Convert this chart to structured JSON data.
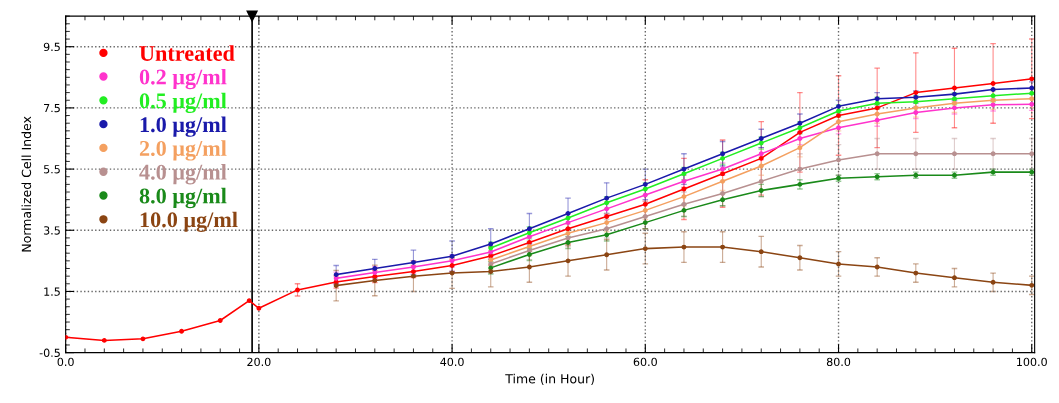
{
  "chart_data": {
    "type": "line",
    "xlabel": "Time (in Hour)",
    "ylabel": "Normalized Cell Index",
    "x": [
      0,
      4,
      8,
      12,
      16,
      19,
      20,
      24,
      28,
      32,
      36,
      40,
      44,
      48,
      52,
      56,
      60,
      64,
      68,
      72,
      76,
      80,
      84,
      88,
      92,
      96,
      100
    ],
    "xlim": [
      0,
      100.3
    ],
    "ylim": [
      -0.5,
      10.5
    ],
    "xticks": [
      {
        "value": 0,
        "label": "0.0"
      },
      {
        "value": 20,
        "label": "20.0"
      },
      {
        "value": 40,
        "label": "40.0"
      },
      {
        "value": 60,
        "label": "60.0"
      },
      {
        "value": 80,
        "label": "80.0"
      },
      {
        "value": 100,
        "label": "100.0"
      }
    ],
    "yticks": [
      -0.5,
      1.5,
      3.5,
      5.5,
      7.5,
      9.5
    ],
    "grid": true,
    "legend": "top left",
    "marker": "circle",
    "line_style": "solid",
    "ref_lines": [
      {
        "axis": "x",
        "value": 19.3,
        "color": "#000000",
        "line_style": "solid"
      }
    ],
    "series": [
      {
        "name": "Untreated",
        "color": "#ff0000",
        "values": [
          0.0,
          -0.1,
          -0.05,
          0.2,
          0.55,
          1.2,
          0.95,
          1.55,
          1.81,
          1.99,
          2.15,
          2.35,
          2.66,
          3.1,
          3.55,
          3.95,
          4.35,
          4.85,
          5.35,
          5.85,
          6.7,
          7.25,
          7.5,
          8.0,
          8.15,
          8.3,
          8.45
        ],
        "errors": [
          null,
          null,
          null,
          null,
          null,
          null,
          null,
          0.2,
          0.2,
          0.2,
          0.2,
          0.2,
          0.3,
          null,
          0.5,
          null,
          0.8,
          1.0,
          1.1,
          1.2,
          1.3,
          1.3,
          1.3,
          1.3,
          1.3,
          1.3,
          1.3
        ]
      },
      {
        "name": "0.2 μg/ml",
        "color": "#ff33cc",
        "values": [
          null,
          null,
          null,
          null,
          null,
          null,
          null,
          null,
          1.93,
          2.12,
          2.3,
          2.5,
          2.79,
          3.29,
          3.75,
          4.2,
          4.65,
          5.1,
          5.5,
          6.0,
          6.5,
          6.85,
          7.1,
          7.35,
          7.5,
          7.6,
          7.62
        ],
        "errors": [
          null,
          null,
          null,
          null,
          null,
          null,
          null,
          null,
          0.2,
          0.2,
          0.2,
          0.2,
          0.2,
          0.2,
          null,
          0.2,
          0.2,
          0.2,
          0.2,
          0.2,
          0.2,
          0.2,
          0.2,
          0.2,
          0.2,
          0.2,
          0.2
        ]
      },
      {
        "name": "0.5 μg/ml",
        "color": "#22ee22",
        "values": [
          null,
          null,
          null,
          null,
          null,
          null,
          null,
          null,
          null,
          null,
          null,
          null,
          2.92,
          3.42,
          3.9,
          4.4,
          4.85,
          5.35,
          5.85,
          6.35,
          6.85,
          7.4,
          7.65,
          7.7,
          7.8,
          7.9,
          7.98
        ],
        "errors": [
          null,
          null,
          null,
          null,
          null,
          null,
          null,
          null,
          null,
          null,
          null,
          null,
          0.2,
          0.2,
          null,
          0.2,
          0.2,
          0.2,
          0.2,
          0.2,
          0.2,
          0.2,
          0.2,
          0.2,
          0.2,
          0.2,
          null
        ]
      },
      {
        "name": "1.0 μg/ml",
        "color": "#1a1aaa",
        "values": [
          null,
          null,
          null,
          null,
          null,
          null,
          null,
          null,
          2.05,
          2.25,
          2.45,
          2.65,
          3.05,
          3.55,
          4.05,
          4.55,
          5.0,
          5.5,
          6.0,
          6.5,
          7.0,
          7.55,
          7.8,
          7.85,
          7.95,
          8.1,
          8.15
        ],
        "errors": [
          null,
          null,
          null,
          null,
          null,
          null,
          null,
          null,
          0.3,
          0.3,
          0.4,
          0.5,
          0.5,
          0.5,
          0.5,
          0.5,
          0.5,
          0.5,
          0.4,
          0.3,
          0.3,
          0.2,
          0.2,
          0.2,
          0.2,
          null,
          0.2
        ]
      },
      {
        "name": "2.0 μg/ml",
        "color": "#f4a060",
        "values": [
          null,
          null,
          null,
          null,
          null,
          null,
          null,
          null,
          null,
          null,
          null,
          null,
          2.53,
          2.97,
          3.4,
          3.75,
          4.15,
          4.6,
          5.1,
          5.6,
          6.2,
          7.05,
          7.3,
          7.5,
          7.65,
          7.75,
          7.8
        ],
        "errors": [
          null,
          null,
          null,
          null,
          null,
          null,
          null,
          null,
          null,
          null,
          null,
          null,
          0.3,
          0.3,
          0.3,
          0.3,
          0.3,
          0.3,
          0.3,
          0.3,
          0.3,
          0.3,
          0.3,
          0.3,
          0.3,
          0.3,
          0.3
        ]
      },
      {
        "name": "4.0 μg/ml",
        "color": "#b89090",
        "values": [
          null,
          null,
          null,
          null,
          null,
          null,
          null,
          null,
          null,
          null,
          null,
          null,
          2.4,
          2.84,
          3.25,
          3.55,
          3.95,
          4.35,
          4.7,
          5.1,
          5.5,
          5.8,
          6.0,
          6.0,
          6.0,
          6.0,
          6.0
        ],
        "errors": [
          null,
          null,
          null,
          null,
          null,
          null,
          null,
          null,
          null,
          null,
          null,
          null,
          0.3,
          0.3,
          0.3,
          0.3,
          0.4,
          0.4,
          0.4,
          0.5,
          0.5,
          0.5,
          0.5,
          0.5,
          0.5,
          0.5,
          0.5
        ]
      },
      {
        "name": "8.0 μg/ml",
        "color": "#1a8a1a",
        "values": [
          null,
          null,
          null,
          null,
          null,
          null,
          null,
          null,
          null,
          null,
          null,
          null,
          2.27,
          2.71,
          3.1,
          3.35,
          3.75,
          4.15,
          4.5,
          4.8,
          5.0,
          5.2,
          5.25,
          5.3,
          5.3,
          5.4,
          5.4
        ],
        "errors": [
          null,
          null,
          null,
          null,
          null,
          null,
          null,
          null,
          null,
          null,
          null,
          null,
          0.2,
          0.2,
          0.2,
          0.2,
          0.2,
          0.2,
          0.2,
          0.2,
          0.15,
          0.1,
          0.1,
          0.1,
          0.1,
          0.1,
          0.1
        ]
      },
      {
        "name": "10.0 μg/ml",
        "color": "#8b4513",
        "values": [
          null,
          null,
          null,
          null,
          null,
          null,
          null,
          null,
          1.69,
          1.86,
          2.0,
          2.1,
          2.15,
          2.3,
          2.5,
          2.7,
          2.9,
          2.95,
          2.95,
          2.8,
          2.6,
          2.4,
          2.3,
          2.1,
          1.95,
          1.8,
          1.7
        ],
        "errors": [
          null,
          null,
          null,
          null,
          null,
          null,
          null,
          null,
          0.5,
          0.5,
          0.5,
          0.5,
          0.5,
          0.5,
          0.5,
          0.5,
          0.5,
          0.5,
          0.5,
          0.5,
          0.4,
          0.4,
          0.3,
          0.3,
          0.3,
          0.3,
          0.3
        ]
      }
    ]
  }
}
